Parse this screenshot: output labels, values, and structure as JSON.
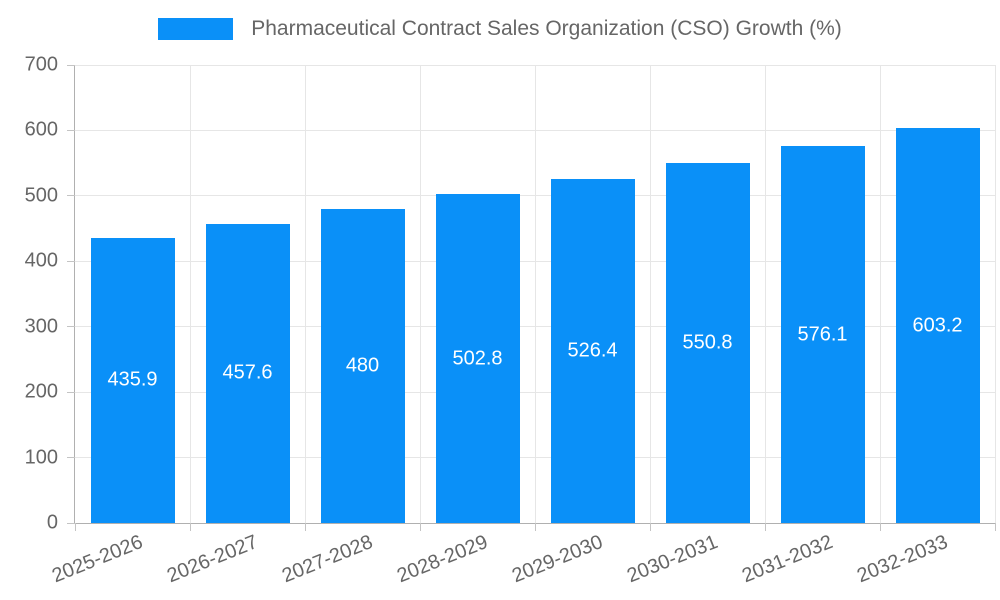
{
  "chart_data": {
    "type": "bar",
    "title": "Pharmaceutical Contract Sales Organization (CSO) Growth (%)",
    "categories": [
      "2025-2026",
      "2026-2027",
      "2027-2028",
      "2028-2029",
      "2029-2030",
      "2030-2031",
      "2031-2032",
      "2032-2033"
    ],
    "values": [
      435.9,
      457.6,
      480,
      502.8,
      526.4,
      550.8,
      576.1,
      603.2
    ],
    "value_labels": [
      "435.9",
      "457.6",
      "480",
      "502.8",
      "526.4",
      "550.8",
      "576.1",
      "603.2"
    ],
    "xlabel": "",
    "ylabel": "",
    "ylim": [
      0,
      700
    ],
    "yticks": [
      0,
      100,
      200,
      300,
      400,
      500,
      600,
      700
    ],
    "grid": "both",
    "legend_position": "top-center",
    "colors": {
      "bar": "#0a90f8",
      "bar_value_text": "#ffffff",
      "axis_text": "#666666",
      "gridline": "#e6e6e6",
      "axis_line": "#b0b0b0",
      "tick_mark": "#c4c4c4"
    }
  }
}
